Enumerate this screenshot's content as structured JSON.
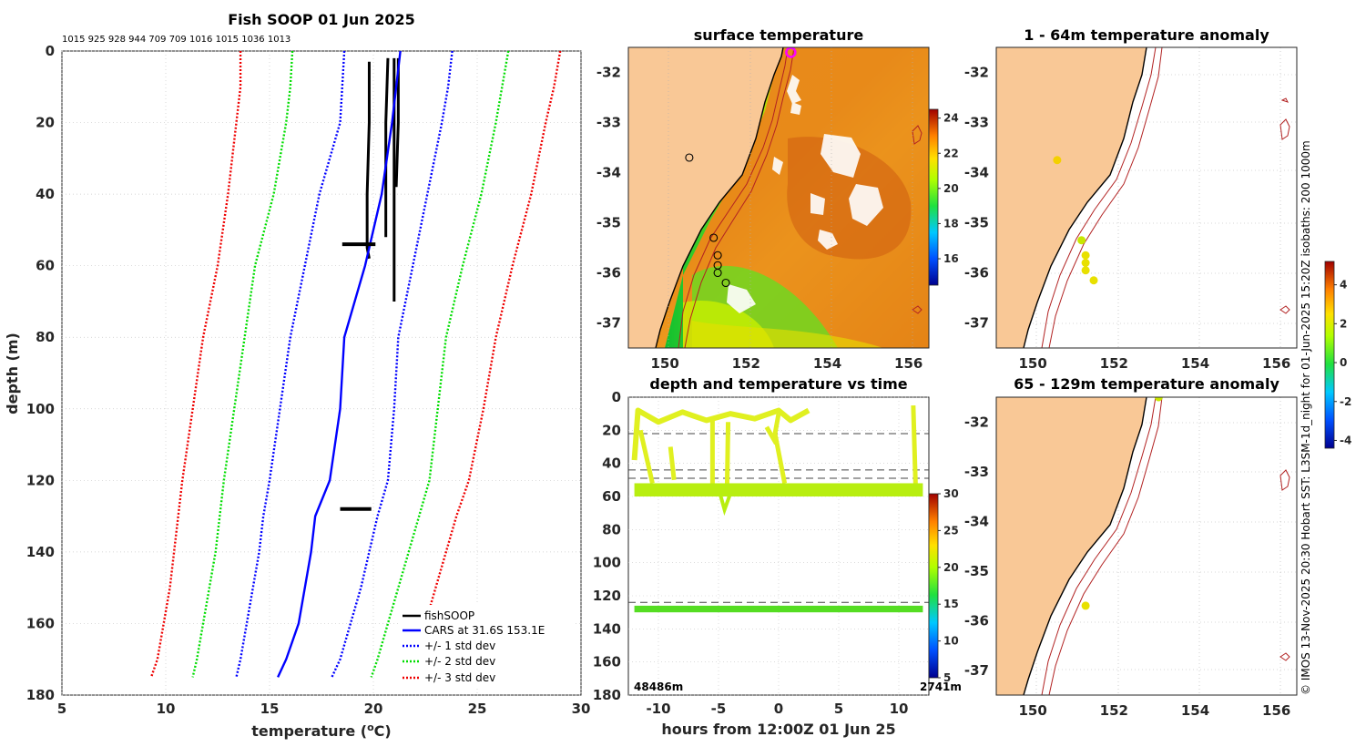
{
  "colors": {
    "fishsoop": "#000000",
    "cars": "#0000ff",
    "std1": "#0000ff",
    "std2": "#00dd00",
    "std3": "#ee0000",
    "land": "#f9c896",
    "isobath": "#b22222"
  },
  "profile": {
    "title": "Fish SOOP 01 Jun 2025",
    "numbers": "1015 925 928 944 709 709 1016 1015 1036 1013",
    "xlabel": "temperature (",
    "xlabel_unit": "o",
    "xlabel_tail": "C)",
    "ylabel": "depth (m)"
  },
  "maps": {
    "sst_title": "surface temperature",
    "anom1_title": "1 - 64m temperature anomaly",
    "anom2_title": "65 - 129m temperature anomaly",
    "lat_ticks": [
      "-32",
      "-33",
      "-34",
      "-35",
      "-36",
      "-37"
    ],
    "lon_ticks": [
      "150",
      "152",
      "154",
      "156"
    ]
  },
  "timeplot": {
    "title": "depth and temperature vs time",
    "xlabel": "hours from 12:00Z 01 Jun 25",
    "bottom_left": "48486m",
    "bottom_right": "2741m"
  },
  "side_text": "© IMOS 13-Nov-2025 20:30 Hobart SST: L3SM-1d_night for 01-Jun-2025 15:20Z isobaths: 200 1000m",
  "colorbars": {
    "sst_ticks": [
      "24",
      "22",
      "20",
      "18",
      "16"
    ],
    "time_ticks": [
      "30",
      "25",
      "20",
      "15",
      "10",
      "5"
    ],
    "anom_ticks": [
      "4",
      "2",
      "0",
      "-2",
      "-4"
    ]
  },
  "chart_data": [
    {
      "type": "line",
      "title": "Fish SOOP 01 Jun 2025",
      "xlabel": "temperature (oC)",
      "ylabel": "depth (m)",
      "xlim": [
        5,
        30
      ],
      "ylim": [
        180,
        0
      ],
      "xticks": [
        5,
        10,
        15,
        20,
        25,
        30
      ],
      "yticks": [
        0,
        20,
        40,
        60,
        80,
        100,
        120,
        140,
        160,
        180
      ],
      "grid": true,
      "legend_position": "bottom-right",
      "depth": [
        0,
        10,
        20,
        40,
        60,
        80,
        100,
        120,
        130,
        140,
        150,
        160,
        170,
        175
      ],
      "series": [
        {
          "name": "fishSOOP",
          "style": "solid-black",
          "profiles": [
            {
              "depth": [
                3,
                20,
                40,
                55,
                58
              ],
              "temperature": [
                19.8,
                19.8,
                19.7,
                19.7,
                19.8
              ]
            },
            {
              "depth": [
                2,
                20,
                40,
                52
              ],
              "temperature": [
                20.7,
                20.6,
                20.6,
                20.6
              ]
            },
            {
              "depth": [
                2,
                20,
                40,
                60,
                70
              ],
              "temperature": [
                21.0,
                21.0,
                21.0,
                21.0,
                21.0
              ]
            },
            {
              "depth": [
                2,
                20,
                38
              ],
              "temperature": [
                21.2,
                21.2,
                21.1
              ]
            }
          ]
        },
        {
          "name": "CARS at 31.6S 153.1E",
          "style": "solid-blue",
          "values": [
            21.3,
            21.1,
            20.9,
            20.4,
            19.6,
            18.6,
            18.4,
            17.9,
            17.2,
            17.0,
            16.7,
            16.4,
            15.8,
            15.4
          ]
        },
        {
          "name": "+/- 1 std dev",
          "style": "dotted-blue",
          "lower": [
            18.6,
            18.5,
            18.4,
            17.4,
            16.7,
            16.0,
            15.5,
            15.0,
            14.7,
            14.5,
            14.2,
            13.9,
            13.6,
            13.4
          ],
          "upper": [
            23.8,
            23.6,
            23.3,
            22.6,
            21.9,
            21.2,
            21.0,
            20.7,
            20.2,
            19.8,
            19.4,
            18.9,
            18.4,
            18.0
          ]
        },
        {
          "name": "+/- 2 std dev",
          "style": "dotted-green",
          "lower": [
            16.1,
            16.0,
            15.8,
            15.2,
            14.3,
            13.8,
            13.3,
            12.8,
            12.6,
            12.4,
            12.1,
            11.8,
            11.5,
            11.3
          ],
          "upper": [
            26.5,
            26.2,
            25.9,
            25.2,
            24.3,
            23.5,
            23.1,
            22.7,
            22.2,
            21.7,
            21.2,
            20.7,
            20.2,
            19.9
          ]
        },
        {
          "name": "+/- 3 std dev",
          "style": "dotted-red",
          "lower": [
            13.6,
            13.6,
            13.4,
            13.0,
            12.5,
            11.8,
            11.3,
            10.8,
            10.6,
            10.4,
            10.2,
            9.9,
            9.6,
            9.3
          ],
          "upper": [
            29.0,
            28.7,
            28.3,
            27.6,
            26.7,
            25.9,
            25.3,
            24.6,
            24.0,
            23.5,
            23.0,
            22.5,
            22.0,
            21.6
          ]
        }
      ]
    },
    {
      "type": "heatmap",
      "title": "surface temperature",
      "xlim": [
        149.1,
        156.5
      ],
      "ylim": [
        -37.5,
        -31.5
      ],
      "colorbar_range": [
        14.5,
        24.5
      ],
      "stations": [
        {
          "lon": 153.1,
          "lat": -31.6
        },
        {
          "lon": 150.6,
          "lat": -33.7
        },
        {
          "lon": 151.2,
          "lat": -35.3
        },
        {
          "lon": 151.3,
          "lat": -35.65
        },
        {
          "lon": 151.3,
          "lat": -35.85
        },
        {
          "lon": 151.3,
          "lat": -36.0
        },
        {
          "lon": 151.5,
          "lat": -36.2
        }
      ]
    },
    {
      "type": "scatter",
      "title": "1 - 64m temperature anomaly",
      "xlim": [
        149.1,
        156.5
      ],
      "ylim": [
        -37.5,
        -31.5
      ],
      "colorbar_range": [
        -4,
        5
      ],
      "points": [
        {
          "lon": 150.6,
          "lat": -33.75,
          "anomaly": 2.2
        },
        {
          "lon": 151.2,
          "lat": -35.35,
          "anomaly": 1.0
        },
        {
          "lon": 151.3,
          "lat": -35.65,
          "anomaly": 1.5
        },
        {
          "lon": 151.3,
          "lat": -35.8,
          "anomaly": 1.5
        },
        {
          "lon": 151.3,
          "lat": -35.95,
          "anomaly": 1.5
        },
        {
          "lon": 151.5,
          "lat": -36.15,
          "anomaly": 1.8
        }
      ]
    },
    {
      "type": "scatter",
      "title": "depth and temperature vs time",
      "xlabel": "hours from 12:00Z 01 Jun 25",
      "xlim": [
        -12.5,
        12.5
      ],
      "ylim": [
        180,
        0
      ],
      "xticks": [
        -10,
        -5,
        0,
        5,
        10
      ],
      "yticks": [
        0,
        20,
        40,
        60,
        80,
        100,
        120,
        140,
        160,
        180
      ],
      "colorbar_range": [
        5,
        30
      ],
      "reference_depths": [
        22,
        44,
        49,
        124
      ],
      "series": [
        {
          "name": "shallow",
          "hours_range": [
            -12,
            2.5
          ],
          "depth_range": [
            5,
            20
          ],
          "temperature": 21
        },
        {
          "name": "mid",
          "hours_range": [
            -12,
            12
          ],
          "depth_range": [
            52,
            60
          ],
          "temperature": 20
        },
        {
          "name": "deep",
          "hours_range": [
            -12,
            12
          ],
          "depth_range": [
            126,
            130
          ],
          "temperature": 18.5
        }
      ]
    },
    {
      "type": "scatter",
      "title": "65 - 129m temperature anomaly",
      "xlim": [
        149.1,
        156.5
      ],
      "ylim": [
        -37.5,
        -31.5
      ],
      "colorbar_range": [
        -4,
        5
      ],
      "points": [
        {
          "lon": 153.1,
          "lat": -31.5,
          "anomaly": 1.0
        },
        {
          "lon": 151.3,
          "lat": -35.7,
          "anomaly": 1.5
        }
      ]
    }
  ]
}
